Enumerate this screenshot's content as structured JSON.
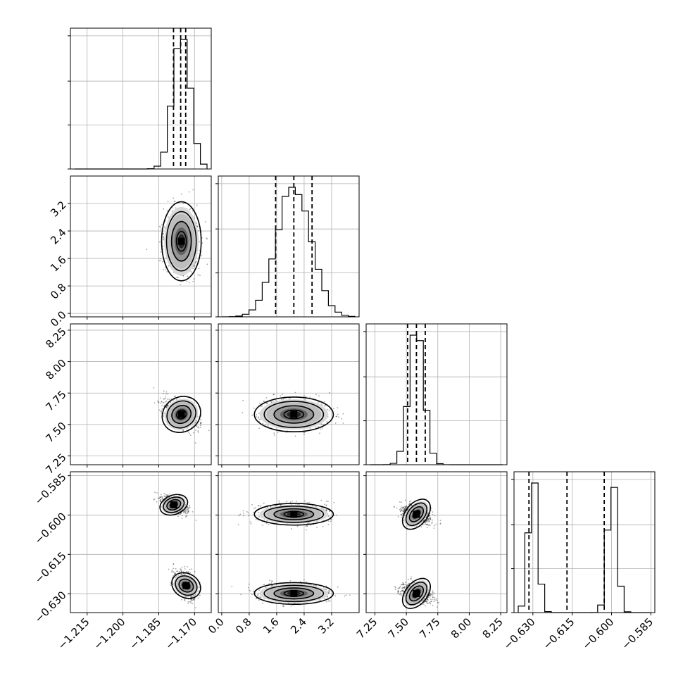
{
  "chart_data": {
    "type": "corner",
    "grid": true,
    "parameters": [
      {
        "key": "p0",
        "range": [
          -1.222,
          -1.163
        ],
        "ticks": [
          -1.215,
          -1.2,
          -1.185,
          -1.17
        ],
        "tick_labels": [
          "−1.215",
          "−1.200",
          "−1.185",
          "−1.170"
        ],
        "mean": -1.1755,
        "sd": 0.0036,
        "quantiles": [
          -1.1788,
          -1.1758,
          -1.1737
        ]
      },
      {
        "key": "p1",
        "range": [
          -0.1,
          4.0
        ],
        "ticks": [
          0.0,
          0.8,
          1.6,
          2.4,
          3.2
        ],
        "tick_labels": [
          "0.0",
          "0.8",
          "1.6",
          "2.4",
          "3.2"
        ],
        "mean": 2.1,
        "sd": 0.5,
        "quantiles": [
          1.57,
          2.1,
          2.63
        ]
      },
      {
        "key": "p2",
        "range": [
          7.18,
          8.3
        ],
        "ticks": [
          7.25,
          7.5,
          7.75,
          8.0,
          8.25
        ],
        "tick_labels": [
          "7.25",
          "7.50",
          "7.75",
          "8.00",
          "8.25"
        ],
        "mean": 7.58,
        "sd": 0.06,
        "quantiles": [
          7.51,
          7.58,
          7.65
        ]
      },
      {
        "key": "p3",
        "range": [
          -0.6372,
          -0.5835
        ],
        "ticks": [
          -0.63,
          -0.615,
          -0.6,
          -0.585
        ],
        "tick_labels": [
          "−0.630",
          "−0.615",
          "−0.600",
          "−0.585"
        ],
        "quantiles": [
          -0.6315,
          -0.617,
          -0.6028
        ],
        "modes": [
          {
            "mean": -0.6299,
            "sd": 0.0018,
            "weight": 0.5
          },
          {
            "mean": -0.5997,
            "sd": 0.0018,
            "weight": 0.5
          }
        ]
      }
    ],
    "clusters_p0_p3": [
      {
        "p0_mean": -1.1787,
        "p0_sd": 0.0026,
        "p3_mean": -0.5961,
        "p3_sd": 0.0016
      },
      {
        "p0_mean": -1.1735,
        "p0_sd": 0.0022,
        "p3_mean": -0.6269,
        "p3_sd": 0.0025
      }
    ],
    "contour_levels": [
      0.5,
      1.0,
      1.5,
      2.0
    ]
  }
}
